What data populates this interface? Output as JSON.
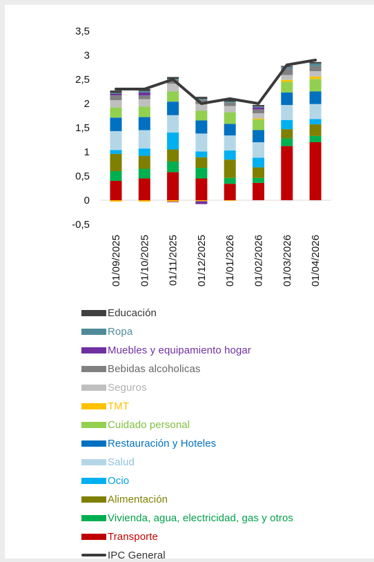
{
  "chart_data": {
    "type": "bar",
    "stacked": true,
    "title": "",
    "xlabel": "",
    "ylabel": "",
    "ylim": [
      -0.5,
      3.5
    ],
    "yticks": [
      "3,5",
      "3",
      "2,5",
      "2",
      "1,5",
      "1",
      "0,5",
      "0",
      "-0,5"
    ],
    "ytick_values": [
      3.5,
      3,
      2.5,
      2,
      1.5,
      1,
      0.5,
      0,
      -0.5
    ],
    "categories": [
      "01/09/2025",
      "01/10/2025",
      "01/11/2025",
      "01/12/2025",
      "01/01/2026",
      "01/02/2026",
      "01/03/2026",
      "01/04/2026"
    ],
    "legend_position": "bottom",
    "series": [
      {
        "name": "Transporte",
        "color": "#c00000",
        "values": [
          0.4,
          0.45,
          0.58,
          0.45,
          0.34,
          0.36,
          1.12,
          1.2
        ]
      },
      {
        "name": "Vivienda, agua, electricidad, gas y otros",
        "color": "#00b050",
        "values": [
          0.2,
          0.2,
          0.22,
          0.22,
          0.12,
          0.1,
          0.16,
          0.13
        ]
      },
      {
        "name": "Alimentación",
        "color": "#7f7f00",
        "values": [
          0.36,
          0.27,
          0.25,
          0.22,
          0.38,
          0.22,
          0.19,
          0.24
        ]
      },
      {
        "name": "Ocio",
        "color": "#00b0f0",
        "values": [
          0.08,
          0.15,
          0.35,
          0.12,
          0.19,
          0.2,
          0.19,
          0.11
        ]
      },
      {
        "name": "Salud",
        "color": "#b4d7e8",
        "values": [
          0.39,
          0.38,
          0.36,
          0.37,
          0.31,
          0.32,
          0.31,
          0.31
        ]
      },
      {
        "name": "Restauración y Hoteles",
        "color": "#0070c0",
        "values": [
          0.28,
          0.27,
          0.28,
          0.27,
          0.24,
          0.25,
          0.26,
          0.26
        ]
      },
      {
        "name": "Cuidado personal",
        "color": "#92d050",
        "values": [
          0.21,
          0.22,
          0.21,
          0.2,
          0.24,
          0.22,
          0.22,
          0.26
        ]
      },
      {
        "name": "TMT",
        "color": "#ffc000",
        "values": [
          -0.03,
          -0.03,
          -0.03,
          -0.02,
          -0.01,
          0.02,
          0.04,
          0.05
        ]
      },
      {
        "name": "Seguros",
        "color": "#bfbfbf",
        "values": [
          0.15,
          0.15,
          0.16,
          0.14,
          0.13,
          0.11,
          0.1,
          0.11
        ]
      },
      {
        "name": "Bebidas alcoholicas",
        "color": "#808080",
        "values": [
          0.1,
          0.08,
          0.08,
          0.09,
          0.07,
          0.08,
          0.14,
          0.11
        ]
      },
      {
        "name": "Muebles y equipamiento hogar",
        "color": "#7030a0",
        "values": [
          0.03,
          0.06,
          -0.01,
          -0.06,
          0.0,
          0.04,
          0.0,
          0.0
        ]
      },
      {
        "name": "Ropa",
        "color": "#4f8a98",
        "values": [
          0.02,
          0.03,
          0.02,
          0.02,
          0.02,
          0.02,
          0.03,
          0.05
        ]
      },
      {
        "name": "Educación",
        "color": "#404040",
        "values": [
          0.05,
          0.04,
          0.04,
          0.04,
          0.04,
          0.03,
          0.02,
          0.03
        ]
      }
    ],
    "line": {
      "name": "IPC General",
      "color": "#3a3a3a",
      "values": [
        2.3,
        2.3,
        2.5,
        2.0,
        2.1,
        2.0,
        2.8,
        2.9
      ]
    }
  },
  "legend": [
    {
      "label": "Educación",
      "color": "#404040",
      "text_color": "#333333",
      "kind": "box"
    },
    {
      "label": "Ropa",
      "color": "#4f8a98",
      "text_color": "#4f8a98",
      "kind": "box"
    },
    {
      "label": "Muebles y equipamiento hogar",
      "color": "#7030a0",
      "text_color": "#7030a0",
      "kind": "box"
    },
    {
      "label": "Bebidas alcoholicas",
      "color": "#808080",
      "text_color": "#666666",
      "kind": "box"
    },
    {
      "label": "Seguros",
      "color": "#bfbfbf",
      "text_color": "#b0b0b0",
      "kind": "box"
    },
    {
      "label": "TMT",
      "color": "#ffc000",
      "text_color": "#ffc000",
      "kind": "box"
    },
    {
      "label": "Cuidado personal",
      "color": "#92d050",
      "text_color": "#7fbf3f",
      "kind": "box"
    },
    {
      "label": "Restauración y Hoteles",
      "color": "#0070c0",
      "text_color": "#0070c0",
      "kind": "box"
    },
    {
      "label": "Salud",
      "color": "#b4d7e8",
      "text_color": "#8fc1dc",
      "kind": "box"
    },
    {
      "label": "Ocio",
      "color": "#00b0f0",
      "text_color": "#00a0e0",
      "kind": "box"
    },
    {
      "label": "Alimentación",
      "color": "#7f7f00",
      "text_color": "#7f7f00",
      "kind": "box"
    },
    {
      "label": "Vivienda, agua, electricidad, gas y otros",
      "color": "#00b050",
      "text_color": "#00a048",
      "kind": "box"
    },
    {
      "label": "Transporte",
      "color": "#c00000",
      "text_color": "#c00000",
      "kind": "box"
    },
    {
      "label": "IPC General",
      "color": "#3a3a3a",
      "text_color": "#333333",
      "kind": "line"
    }
  ]
}
